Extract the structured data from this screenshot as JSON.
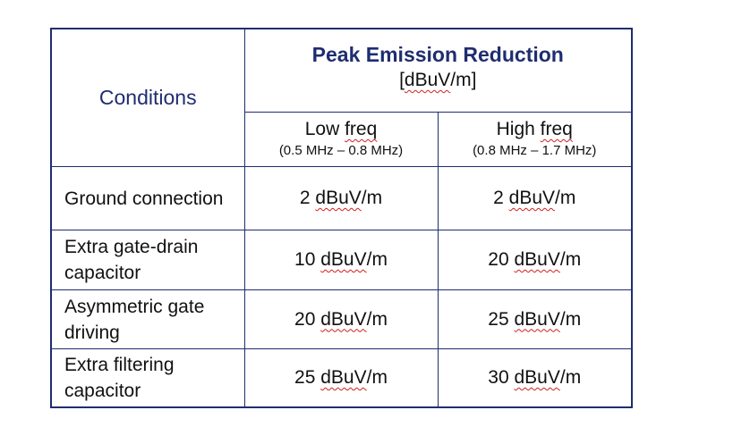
{
  "table": {
    "conditions_header": "Conditions",
    "peak_header": "Peak Emission Reduction",
    "unit_prefix": "[",
    "unit": "dBuV",
    "unit_suffix": "/m]",
    "subheaders": [
      {
        "label_word": "Low ",
        "label_squiggle": "freq",
        "range": "(0.5 MHz – 0.8 MHz)"
      },
      {
        "label_word": "High ",
        "label_squiggle": "freq",
        "range": "(0.8 MHz – 1.7 MHz)"
      }
    ],
    "rows": [
      {
        "condition": "Ground connection",
        "low": {
          "num": "2 ",
          "unit": "dBuV",
          "suffix": "/m"
        },
        "high": {
          "num": "2 ",
          "unit": "dBuV",
          "suffix": "/m"
        }
      },
      {
        "condition": "Extra gate-drain capacitor",
        "low": {
          "num": "10 ",
          "unit": "dBuV",
          "suffix": "/m"
        },
        "high": {
          "num": "20 ",
          "unit": "dBuV",
          "suffix": "/m"
        }
      },
      {
        "condition": "Asymmetric gate driving",
        "low": {
          "num": "20 ",
          "unit": "dBuV",
          "suffix": "/m"
        },
        "high": {
          "num": "25 ",
          "unit": "dBuV",
          "suffix": "/m"
        }
      },
      {
        "condition": "Extra filtering capacitor",
        "low": {
          "num": "25 ",
          "unit": "dBuV",
          "suffix": "/m"
        },
        "high": {
          "num": "30 ",
          "unit": "dBuV",
          "suffix": "/m"
        }
      }
    ]
  },
  "colors": {
    "header_text": "#1f2d70",
    "border": "#1f2d70",
    "spellcheck": "#d21f1f"
  }
}
